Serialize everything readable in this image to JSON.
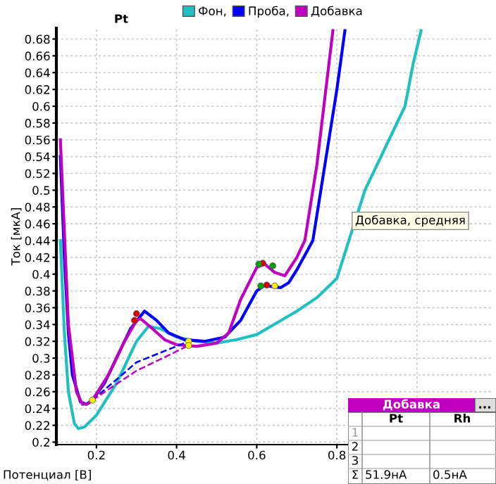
{
  "chart_data": {
    "type": "line",
    "xlabel": "Потенциал [В]",
    "ylabel": "Ток [мкА]",
    "xlim": [
      0.1,
      1.19
    ],
    "ylim": [
      0.197,
      0.693
    ],
    "xticks": [
      0.2,
      0.4,
      0.6,
      0.8,
      {
        "value": 1.0,
        "label": null
      }
    ],
    "yticks": [
      0.2,
      0.22,
      0.24,
      0.26,
      0.28,
      0.3,
      0.32,
      0.34,
      0.36,
      0.38,
      0.4,
      0.42,
      0.44,
      0.46,
      0.48,
      0.5,
      0.52,
      0.54,
      0.56,
      0.58,
      0.6,
      0.62,
      0.64,
      0.66,
      0.68
    ],
    "grid": true,
    "legend": "top",
    "marker": "none",
    "line_style": "solid",
    "series": [
      {
        "name": "Фон,",
        "color": "#20c0c0",
        "x": [
          0.11,
          0.12,
          0.13,
          0.145,
          0.155,
          0.17,
          0.2,
          0.25,
          0.3,
          0.33,
          0.36,
          0.4,
          0.45,
          0.5,
          0.55,
          0.6,
          0.65,
          0.7,
          0.75,
          0.8,
          0.83,
          0.87,
          0.93,
          0.97,
          0.99,
          1.01
        ],
        "values": [
          0.44,
          0.33,
          0.26,
          0.222,
          0.216,
          0.218,
          0.232,
          0.27,
          0.32,
          0.338,
          0.335,
          0.325,
          0.32,
          0.318,
          0.322,
          0.328,
          0.342,
          0.356,
          0.372,
          0.395,
          0.44,
          0.5,
          0.56,
          0.6,
          0.65,
          0.69
        ]
      },
      {
        "name": "Проба,",
        "color": "#0000ff",
        "x": [
          0.11,
          0.12,
          0.13,
          0.14,
          0.16,
          0.175,
          0.19,
          0.22,
          0.26,
          0.285,
          0.32,
          0.35,
          0.38,
          0.42,
          0.47,
          0.52,
          0.56,
          0.6,
          0.62,
          0.64,
          0.66,
          0.68,
          0.7,
          0.74,
          0.76,
          0.78,
          0.8,
          0.82
        ],
        "values": [
          0.54,
          0.42,
          0.33,
          0.28,
          0.248,
          0.245,
          0.25,
          0.27,
          0.31,
          0.335,
          0.356,
          0.345,
          0.33,
          0.322,
          0.32,
          0.325,
          0.345,
          0.38,
          0.387,
          0.385,
          0.384,
          0.39,
          0.405,
          0.44,
          0.5,
          0.56,
          0.62,
          0.69
        ]
      },
      {
        "name": "Добавка",
        "color": "#c000c0",
        "x": [
          0.11,
          0.12,
          0.13,
          0.15,
          0.165,
          0.18,
          0.19,
          0.23,
          0.27,
          0.3,
          0.31,
          0.34,
          0.37,
          0.4,
          0.45,
          0.5,
          0.53,
          0.56,
          0.6,
          0.62,
          0.645,
          0.67,
          0.7,
          0.72,
          0.75,
          0.77,
          0.79
        ],
        "values": [
          0.56,
          0.45,
          0.34,
          0.26,
          0.245,
          0.246,
          0.25,
          0.28,
          0.32,
          0.345,
          0.347,
          0.335,
          0.322,
          0.316,
          0.314,
          0.318,
          0.33,
          0.37,
          0.408,
          0.412,
          0.402,
          0.398,
          0.42,
          0.44,
          0.53,
          0.61,
          0.69
        ]
      },
      {
        "type": "line",
        "line_style": "dashed",
        "color": "#0000ff",
        "x": [
          0.19,
          0.3,
          0.43
        ],
        "values": [
          0.25,
          0.295,
          0.32
        ]
      },
      {
        "type": "line",
        "line_style": "dashed",
        "color": "#c000c0",
        "x": [
          0.19,
          0.3,
          0.43
        ],
        "values": [
          0.25,
          0.285,
          0.315
        ]
      },
      {
        "type": "scatter",
        "marker": "circle",
        "x": [
          0.19,
          0.43,
          0.43,
          0.3,
          0.295,
          0.615,
          0.625,
          0.605,
          0.64,
          0.61,
          0.645
        ],
        "values": [
          0.25,
          0.32,
          0.315,
          0.353,
          0.345,
          0.413,
          0.387,
          0.412,
          0.41,
          0.386,
          0.386
        ],
        "colors": [
          "#ffee00",
          "#ffee00",
          "#ffee00",
          "#e00000",
          "#e00000",
          "#e00000",
          "#e00000",
          "#00a000",
          "#00a000",
          "#00a000",
          "#ffee00"
        ]
      }
    ],
    "annotations": [
      "Pt",
      "Добавка, средняя",
      "Добавка",
      "...",
      "Pt",
      "Rh",
      "1",
      "2",
      "3",
      "Σ",
      "51.9нА",
      "0.5нА"
    ]
  }
}
